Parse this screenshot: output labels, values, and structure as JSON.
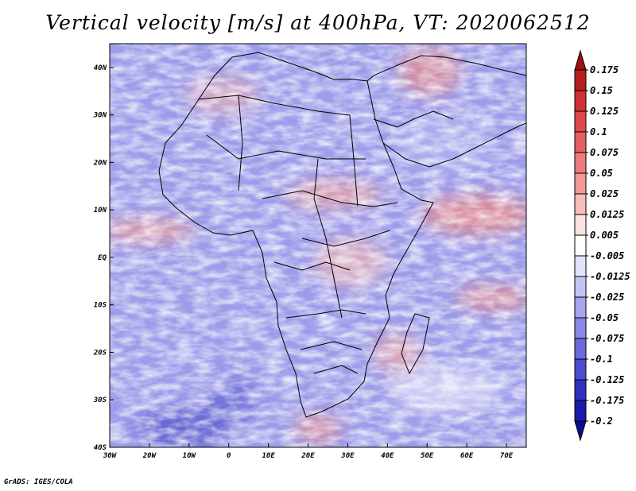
{
  "title": "Vertical velocity [m/s] at 400hPa, VT: 2020062512",
  "credit": "GrADS: IGES/COLA",
  "map": {
    "projection": "latlon",
    "lon_range": [
      -30,
      75
    ],
    "lat_range": [
      -40,
      45
    ],
    "lon_ticks": [
      {
        "value": -30,
        "label": "30W"
      },
      {
        "value": -20,
        "label": "20W"
      },
      {
        "value": -10,
        "label": "10W"
      },
      {
        "value": 0,
        "label": "0"
      },
      {
        "value": 10,
        "label": "10E"
      },
      {
        "value": 20,
        "label": "20E"
      },
      {
        "value": 30,
        "label": "30E"
      },
      {
        "value": 40,
        "label": "40E"
      },
      {
        "value": 50,
        "label": "50E"
      },
      {
        "value": 60,
        "label": "60E"
      },
      {
        "value": 70,
        "label": "70E"
      }
    ],
    "lat_ticks": [
      {
        "value": 40,
        "label": "40N"
      },
      {
        "value": 30,
        "label": "30N"
      },
      {
        "value": 20,
        "label": "20N"
      },
      {
        "value": 10,
        "label": "10N"
      },
      {
        "value": 0,
        "label": "EQ"
      },
      {
        "value": -10,
        "label": "10S"
      },
      {
        "value": -20,
        "label": "20S"
      },
      {
        "value": -30,
        "label": "30S"
      },
      {
        "value": -40,
        "label": "40S"
      }
    ],
    "field": "vertical velocity",
    "units": "m/s",
    "level": "400hPa",
    "field_colors": {
      "negative": "#5a5ad8",
      "positive": "#d84848",
      "neutral": "#ffffff"
    }
  },
  "colorbar": {
    "levels": [
      "0.175",
      "0.15",
      "0.125",
      "0.1",
      "0.075",
      "0.05",
      "0.025",
      "0.0125",
      "0.005",
      "-0.005",
      "-0.0125",
      "-0.025",
      "-0.05",
      "-0.075",
      "-0.1",
      "-0.125",
      "-0.175",
      "-0.2"
    ],
    "colors": [
      "#a01010",
      "#b82020",
      "#d03030",
      "#dc4848",
      "#e46060",
      "#ec7c7c",
      "#f29898",
      "#f8bcbc",
      "#fde2e2",
      "#ffffff",
      "#e2e2fa",
      "#c4c4f4",
      "#a6a6ee",
      "#8888e6",
      "#6a6ade",
      "#4c4cd2",
      "#3030c0",
      "#1a1aa8",
      "#0c0c90"
    ]
  }
}
